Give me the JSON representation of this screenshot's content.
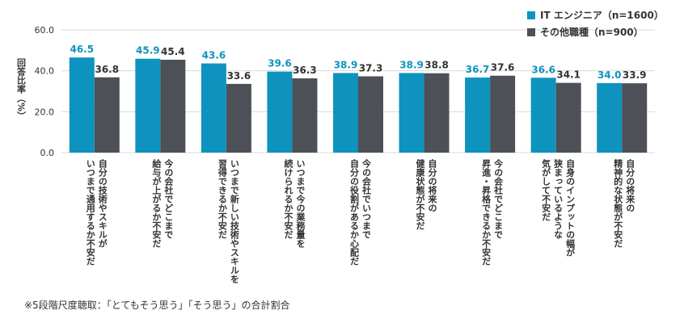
{
  "chart_data": {
    "type": "bar",
    "y_label": "回答比率（%）",
    "note": "※5段階尺度聴取：「とてもそう思う」「そう思う」の合計割合",
    "categories": [
      [
        "自分の技術やスキルが",
        "いつまで通用するか不安だ"
      ],
      [
        "今の会社でどこまで",
        "給与が上がるか不安だ"
      ],
      [
        "いつまで新しい技術やスキルを",
        "習得できるか不安だ"
      ],
      [
        "いつまで今の業務量を",
        "続けられるか不安だ"
      ],
      [
        "今の会社でいつまで",
        "自分の役割があるか心配だ"
      ],
      [
        "自分の将来の",
        "健康状態が不安だ"
      ],
      [
        "今の会社でどこまで",
        "昇進・昇格できるか不安だ"
      ],
      [
        "自身のインプットの幅が",
        "狭まっているような",
        "気がして不安だ"
      ],
      [
        "自分の将来の",
        "精神的な状態が不安だ"
      ]
    ],
    "series": [
      {
        "name": "IT エンジニア（n=1600）",
        "color": "#0e93bf",
        "label_color": "#0e93bf",
        "values": [
          46.5,
          45.9,
          43.6,
          39.6,
          38.9,
          38.9,
          36.7,
          36.6,
          34.0
        ],
        "value_labels": [
          "46.5",
          "45.9",
          "43.6",
          "39.6",
          "38.9",
          "38.9",
          "36.7",
          "36.6",
          "34.0"
        ]
      },
      {
        "name": "その他職種（n=900）",
        "color": "#4d5157",
        "label_color": "#333333",
        "values": [
          36.8,
          45.4,
          33.6,
          36.3,
          37.3,
          38.8,
          37.6,
          34.1,
          33.9
        ],
        "value_labels": [
          "36.8",
          "45.4",
          "33.6",
          "36.3",
          "37.3",
          "38.8",
          "37.6",
          "34.1",
          "33.9"
        ]
      }
    ],
    "ylim": [
      0,
      60
    ],
    "yticks": [
      {
        "value": 0,
        "label": "0.0"
      },
      {
        "value": 20,
        "label": "20.0"
      },
      {
        "value": 40,
        "label": "40.0"
      },
      {
        "value": 60,
        "label": "60.0"
      }
    ],
    "grid": true
  }
}
